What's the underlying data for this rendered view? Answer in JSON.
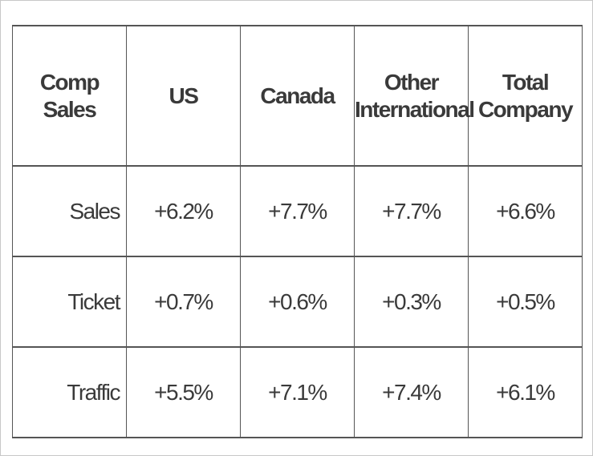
{
  "table": {
    "header": {
      "label": "Comp Sales",
      "columns": [
        {
          "line1": "US",
          "line2": ""
        },
        {
          "line1": "Canada",
          "line2": ""
        },
        {
          "line1": "Other",
          "line2": "International"
        },
        {
          "line1": "Total",
          "line2": "Company"
        }
      ]
    },
    "rows": [
      {
        "label": "Sales",
        "values": [
          "+6.2%",
          "+7.7%",
          "+7.7%",
          "+6.6%"
        ]
      },
      {
        "label": "Ticket",
        "values": [
          "+0.7%",
          "+0.6%",
          "+0.3%",
          "+0.5%"
        ]
      },
      {
        "label": "Traffic",
        "values": [
          "+5.5%",
          "+7.1%",
          "+7.4%",
          "+6.1%"
        ]
      }
    ]
  }
}
